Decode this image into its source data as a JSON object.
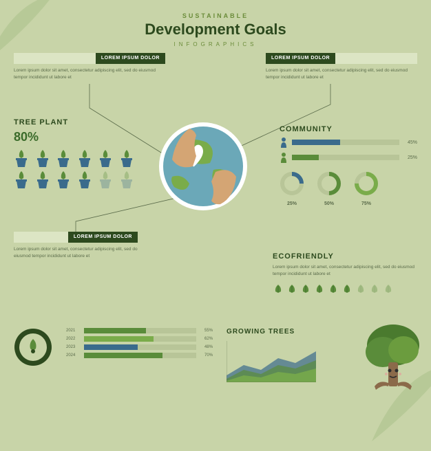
{
  "header": {
    "sub1": "SUSTAINABLE",
    "title": "Development Goals",
    "sub2": "INFOGRAPHICS"
  },
  "callouts": {
    "c1": {
      "label": "LOREM IPSUM DOLOR",
      "body": "Lorem ipsum dolor sit amet, consectetur adipiscing elit, sed do eiusmod tempor incididunt ut labore et"
    },
    "c2": {
      "label": "LOREM IPSUM DOLOR",
      "body": "Lorem ipsum dolor sit amet, consectetur adipiscing elit, sed do eiusmod tempor incididunt ut labore et"
    },
    "c3": {
      "label": "LOREM IPSUM DOLOR",
      "body": "Lorem ipsum dolor sit amet, consectetur adipiscing elit, sed do eiusmod tempor incididunt ut labore et"
    }
  },
  "treeplant": {
    "title": "TREE PLANT",
    "pct": "80%",
    "count": 12,
    "faded_from": 10,
    "pot_color": "#3a6b8c",
    "plant_color": "#5a8c3a"
  },
  "community": {
    "title": "COMMUNITY",
    "bars": [
      {
        "icon_color": "#3a6b8c",
        "fill": 45,
        "color": "#3a6b8c",
        "pct": "45%"
      },
      {
        "icon_color": "#5a8c3a",
        "fill": 25,
        "color": "#5a8c3a",
        "pct": "25%"
      }
    ],
    "donuts": [
      {
        "pct": 25,
        "color": "#3a6b8c",
        "label": "25%"
      },
      {
        "pct": 50,
        "color": "#5a8c3a",
        "label": "50%"
      },
      {
        "pct": 75,
        "color": "#7aac4a",
        "label": "75%"
      }
    ]
  },
  "eco": {
    "title": "ECOFRIENDLY",
    "body": "Lorem ipsum dolor sit amet, consectetur adipiscing elit, sed do eiusmod tempor incididunt ut labore et",
    "leaves": 9,
    "faded_from": 6,
    "leaf_color": "#5a8c3a"
  },
  "yearbars": {
    "rows": [
      {
        "year": "2021",
        "fill": 55,
        "pct": "55%",
        "color": "#5a8c3a"
      },
      {
        "year": "2022",
        "fill": 62,
        "pct": "62%",
        "color": "#7aac4a"
      },
      {
        "year": "2023",
        "fill": 48,
        "pct": "48%",
        "color": "#3a6b8c"
      },
      {
        "year": "2024",
        "fill": 70,
        "pct": "70%",
        "color": "#5a8c3a"
      }
    ]
  },
  "growing": {
    "title": "GROWING TREES",
    "colors": [
      "#3a6b8c",
      "#5a8c3a",
      "#7aac4a"
    ]
  },
  "colors": {
    "bg": "#c8d4a8",
    "dark_green": "#2d4a1e",
    "text": "#5a6b4a",
    "track": "#b8c598",
    "pad": "#dce5c4"
  }
}
